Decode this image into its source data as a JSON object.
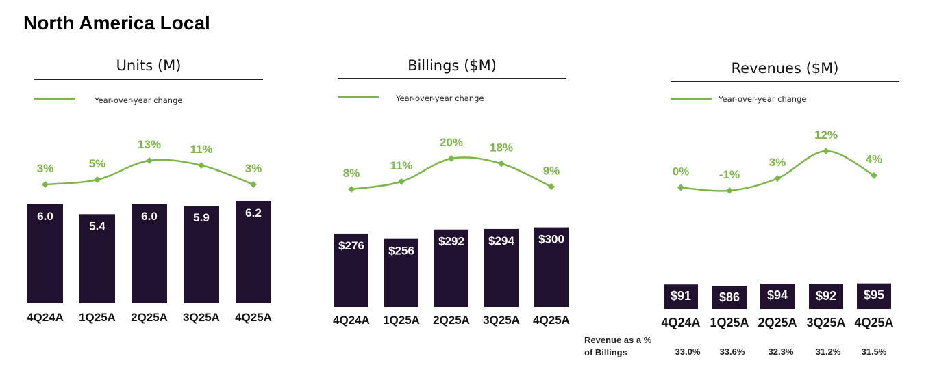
{
  "page": {
    "title": "North America Local"
  },
  "legend_label": "Year-over-year change",
  "colors": {
    "bar": "#20112f",
    "line": "#7ab648",
    "bar_label": "#ffffff"
  },
  "chart_data": [
    {
      "type": "bar",
      "title": "Units (M)",
      "categories": [
        "4Q24A",
        "1Q25A",
        "2Q25A",
        "3Q25A",
        "4Q25A"
      ],
      "series": [
        {
          "values": [
            6.0,
            5.4,
            6.0,
            5.9,
            6.2
          ],
          "labels": [
            "6.0",
            "5.4",
            "6.0",
            "5.9",
            "6.2"
          ]
        },
        {
          "name": "Year-over-year change",
          "type": "line",
          "values": [
            3,
            5,
            13,
            11,
            3
          ],
          "labels": [
            "3%",
            "5%",
            "13%",
            "11%",
            "3%"
          ]
        }
      ]
    },
    {
      "type": "bar",
      "title": "Billings ($M)",
      "categories": [
        "4Q24A",
        "1Q25A",
        "2Q25A",
        "3Q25A",
        "4Q25A"
      ],
      "series": [
        {
          "values": [
            276,
            256,
            292,
            294,
            300
          ],
          "labels": [
            "$276",
            "$256",
            "$292",
            "$294",
            "$300"
          ]
        },
        {
          "name": "Year-over-year change",
          "type": "line",
          "values": [
            8,
            11,
            20,
            18,
            9
          ],
          "labels": [
            "8%",
            "11%",
            "20%",
            "18%",
            "9%"
          ]
        }
      ]
    },
    {
      "type": "bar",
      "title": "Revenues ($M)",
      "categories": [
        "4Q24A",
        "1Q25A",
        "2Q25A",
        "3Q25A",
        "4Q25A"
      ],
      "series": [
        {
          "values": [
            91,
            86,
            94,
            92,
            95
          ],
          "labels": [
            "$91",
            "$86",
            "$94",
            "$92",
            "$95"
          ]
        },
        {
          "name": "Year-over-year change",
          "type": "line",
          "values": [
            0,
            -1,
            3,
            12,
            4
          ],
          "labels": [
            "0%",
            "-1%",
            "3%",
            "12%",
            "4%"
          ]
        }
      ]
    }
  ],
  "revenue_ratio": {
    "label_line1": "Revenue as a %",
    "label_line2": "of Billings",
    "values": [
      "33.0%",
      "33.6%",
      "32.3%",
      "31.2%",
      "31.5%"
    ]
  }
}
